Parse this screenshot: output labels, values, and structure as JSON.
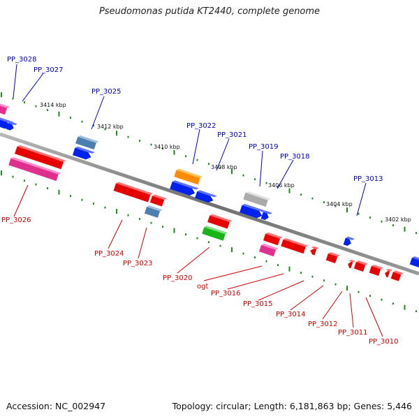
{
  "title": "Pseudomonas putida KT2440, complete genome",
  "footer": {
    "accession": "Accession: NC_002947",
    "topology": "Topology: circular; Length: 6,181,863 bp; Genes: 5,446"
  },
  "colors": {
    "backbone": "#777777",
    "tick": "#1e8a1e",
    "top_label": "#0000bb",
    "bottom_label": "#cc0000",
    "scale_label": "#111111"
  },
  "scale_labels": [
    "3414 kbp",
    "3412 kbp",
    "3410 kbp",
    "3408 kbp",
    "3406 kbp",
    "3404 kbp",
    "3402 kbp"
  ],
  "top_genes": [
    "PP_3028",
    "PP_3027",
    "PP_3025",
    "PP_3022",
    "PP_3021",
    "PP_3019",
    "PP_3018",
    "PP_3013"
  ],
  "bottom_genes": [
    "PP_3026",
    "PP_3024",
    "PP_3023",
    "PP_3020",
    "ogt",
    "PP_3016",
    "PP_3015",
    "PP_3014",
    "PP_3012",
    "PP_3011",
    "PP_3010"
  ]
}
